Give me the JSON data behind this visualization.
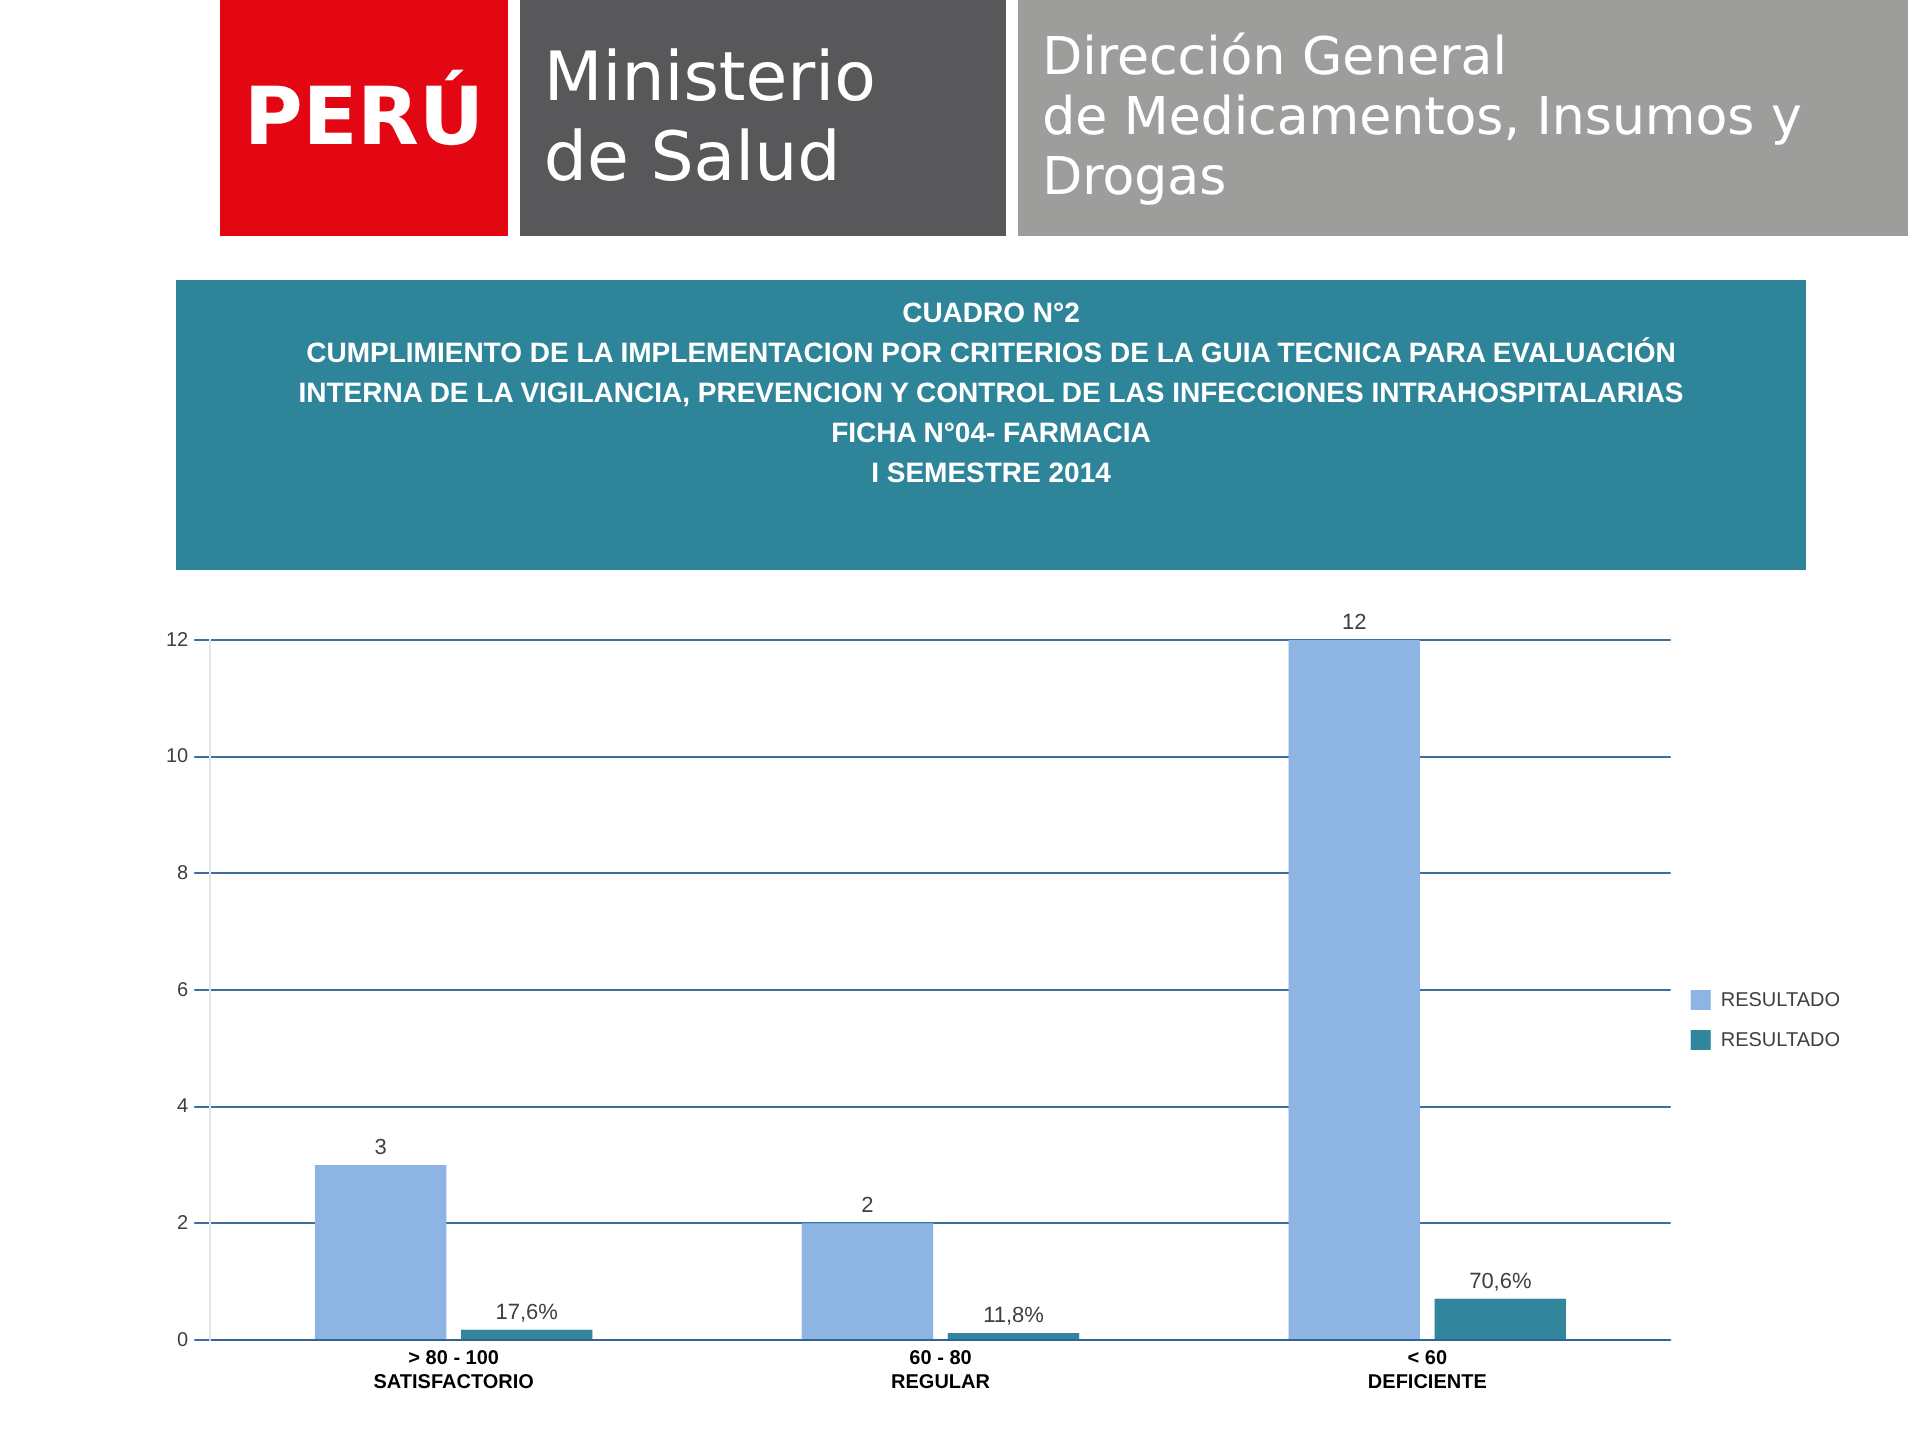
{
  "chart_data": {
    "type": "bar",
    "title": "CUADRO N°2",
    "subtitle": "CUMPLIMIENTO DE LA  IMPLEMENTACION POR CRITERIOS  DE LA GUIA TECNICA PARA EVALUACIÓN\nINTERNA DE LA VIGILANCIA, PREVENCION Y CONTROL DE LAS INFECCIONES INTRAHOSPITALARIAS\nFICHA N°04- FARMACIA\nI SEMESTRE 2014",
    "annotations": [
      "PERÚ",
      "Ministerio\nde Salud",
      "Dirección General\nde Medicamentos, Insumos y Drogas"
    ],
    "categories": [
      "> 80 - 100\nSATISFACTORIO",
      "60 - 80\nREGULAR",
      "< 60\nDEFICIENTE"
    ],
    "series": [
      {
        "name": "RESULTADO",
        "color": "#8db4e2",
        "values": [
          3,
          2,
          12
        ],
        "value_labels": [
          "3",
          "2",
          "12"
        ]
      },
      {
        "name": "RESULTADO",
        "color": "#31859c",
        "values": [
          0.176,
          0.118,
          0.706
        ],
        "value_labels": [
          "17,6%",
          "11,8%",
          "70,6%"
        ]
      }
    ],
    "ylim": [
      0,
      12
    ],
    "yticks": [
      0,
      2,
      4,
      6,
      8,
      10,
      12
    ],
    "grid": "y",
    "legend": "right"
  }
}
